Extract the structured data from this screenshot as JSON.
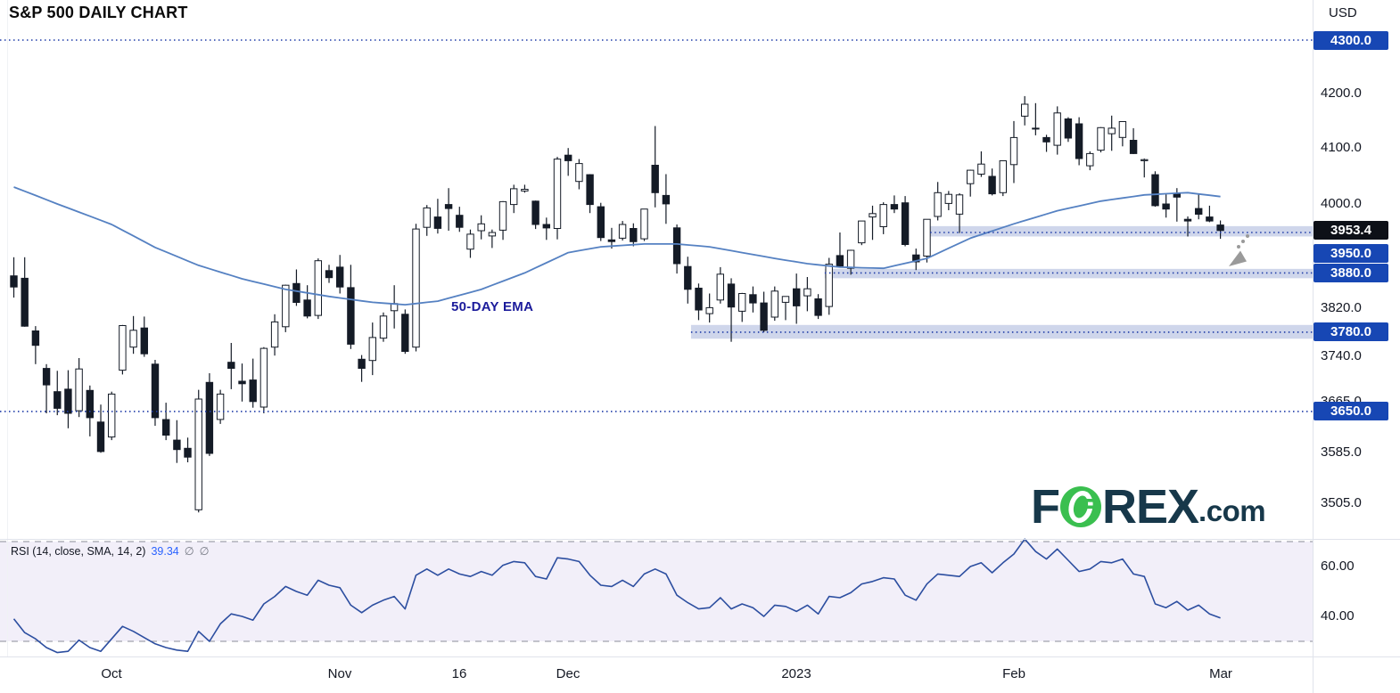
{
  "header": {
    "title": "S&P 500 DAILY CHART",
    "currency_label": "USD"
  },
  "annotations": {
    "ema_label": "50-DAY EMA",
    "arrow_direction": "down-left"
  },
  "logo": {
    "f": "F",
    "rex": "REX",
    "com": ".com"
  },
  "colors": {
    "accent_blue_badge": "#1747b4",
    "last_price_badge": "#0d1017",
    "dotted_level_line": "#1e3ba8",
    "zone_fill": "rgba(55,85,170,0.24)",
    "candle_dark": "#141b26",
    "candle_up_fill": "#ffffff",
    "ema_line": "#5581c2",
    "rsi_line": "#2c4ea0",
    "rsi_band_fill": "#f2eff9",
    "rsi_dashed": "#8b8e99",
    "arrow_gray": "#9a9a9a",
    "logo_green": "#3abf4f",
    "logo_dark": "#17384a",
    "axis_text": "#131722"
  },
  "price_axis": {
    "static_labels": [
      {
        "label": "4200.0",
        "price": 4200
      },
      {
        "label": "4100.0",
        "price": 4100
      },
      {
        "label": "4000.0",
        "price": 4000
      },
      {
        "label": "3820.0",
        "price": 3820
      },
      {
        "label": "3740.0",
        "price": 3740
      },
      {
        "label": "3665.0",
        "price": 3665
      },
      {
        "label": "3585.0",
        "price": 3585
      },
      {
        "label": "3505.0",
        "price": 3505
      }
    ],
    "badges": [
      {
        "label": "4300.0",
        "price": 4300,
        "style": "level",
        "line": "full"
      },
      {
        "label": "3953.4",
        "price": 3953.4,
        "style": "last"
      },
      {
        "label": "3950.0",
        "price": 3950,
        "style": "level",
        "dy": 24
      },
      {
        "label": "3880.0",
        "price": 3880,
        "style": "level"
      },
      {
        "label": "3780.0",
        "price": 3780,
        "style": "level"
      },
      {
        "label": "3650.0",
        "price": 3650,
        "style": "level",
        "line": "full"
      }
    ]
  },
  "zones": [
    {
      "price_top": 3961,
      "price_bottom": 3943,
      "line_price": 3950,
      "start_index": 84.3
    },
    {
      "price_top": 3887,
      "price_bottom": 3871,
      "line_price": 3880,
      "start_index": 74.6
    },
    {
      "price_top": 3792,
      "price_bottom": 3769,
      "line_price": 3780,
      "start_index": 62.3
    }
  ],
  "time_axis": {
    "labels": [
      {
        "index": 9,
        "label": "Oct"
      },
      {
        "index": 30,
        "label": "Nov"
      },
      {
        "index": 41,
        "label": "16"
      },
      {
        "index": 51,
        "label": "Dec"
      },
      {
        "index": 72,
        "label": "2023"
      },
      {
        "index": 92,
        "label": "Feb"
      },
      {
        "index": 111,
        "label": "Mar"
      }
    ]
  },
  "rsi_panel": {
    "label": "RSI (14, close, SMA, 14, 2)",
    "value": "39.34",
    "icon": "∅",
    "upper_band": 70,
    "lower_band": 30,
    "ticks": [
      {
        "value": 60,
        "label": "60.00"
      },
      {
        "value": 40,
        "label": "40.00"
      }
    ]
  },
  "chart_data": {
    "type": "candlestick",
    "title": "S&P 500 DAILY CHART",
    "currency": "USD",
    "price_scale": "log",
    "ylim": [
      3505,
      4300
    ],
    "last_price": 3953.4,
    "candles": [
      [
        3875,
        3907,
        3838,
        3856
      ],
      [
        3871,
        3907,
        3789,
        3790
      ],
      [
        3782,
        3790,
        3727,
        3758
      ],
      [
        3720,
        3727,
        3647,
        3693
      ],
      [
        3682,
        3716,
        3644,
        3655
      ],
      [
        3686,
        3717,
        3623,
        3647
      ],
      [
        3651,
        3737,
        3641,
        3719
      ],
      [
        3684,
        3692,
        3610,
        3640
      ],
      [
        3633,
        3661,
        3584,
        3586
      ],
      [
        3609,
        3682,
        3604,
        3678
      ],
      [
        3717,
        3792,
        3710,
        3791
      ],
      [
        3755,
        3807,
        3744,
        3783
      ],
      [
        3787,
        3806,
        3739,
        3744
      ],
      [
        3727,
        3734,
        3627,
        3640
      ],
      [
        3637,
        3664,
        3604,
        3612
      ],
      [
        3604,
        3636,
        3568,
        3589
      ],
      [
        3591,
        3608,
        3569,
        3577
      ],
      [
        3495,
        3685,
        3491,
        3670
      ],
      [
        3697,
        3712,
        3579,
        3583
      ],
      [
        3637,
        3685,
        3630,
        3678
      ],
      [
        3730,
        3762,
        3686,
        3720
      ],
      [
        3699,
        3728,
        3666,
        3695
      ],
      [
        3701,
        3736,
        3656,
        3666
      ],
      [
        3657,
        3755,
        3647,
        3753
      ],
      [
        3755,
        3810,
        3741,
        3797
      ],
      [
        3789,
        3860,
        3780,
        3859
      ],
      [
        3862,
        3886,
        3824,
        3830
      ],
      [
        3834,
        3859,
        3803,
        3807
      ],
      [
        3808,
        3905,
        3802,
        3901
      ],
      [
        3884,
        3894,
        3863,
        3872
      ],
      [
        3890,
        3911,
        3845,
        3856
      ],
      [
        3855,
        3894,
        3752,
        3760
      ],
      [
        3735,
        3742,
        3698,
        3720
      ],
      [
        3733,
        3796,
        3709,
        3771
      ],
      [
        3770,
        3813,
        3764,
        3807
      ],
      [
        3816,
        3859,
        3786,
        3828
      ],
      [
        3810,
        3818,
        3744,
        3748
      ],
      [
        3755,
        3965,
        3748,
        3956
      ],
      [
        3959,
        3998,
        3944,
        3993
      ],
      [
        3977,
        4009,
        3948,
        3957
      ],
      [
        3999,
        4028,
        3953,
        3992
      ],
      [
        3980,
        3995,
        3951,
        3959
      ],
      [
        3921,
        3955,
        3906,
        3947
      ],
      [
        3953,
        3980,
        3938,
        3965
      ],
      [
        3944,
        3955,
        3923,
        3950
      ],
      [
        3954,
        4005,
        3937,
        4004
      ],
      [
        3999,
        4034,
        3984,
        4027
      ],
      [
        4023,
        4034,
        4020,
        4026
      ],
      [
        4005,
        4006,
        3956,
        3964
      ],
      [
        3964,
        3976,
        3937,
        3958
      ],
      [
        3957,
        4084,
        3938,
        4080
      ],
      [
        4087,
        4100,
        4050,
        4077
      ],
      [
        4040,
        4080,
        4026,
        4072
      ],
      [
        4052,
        4053,
        3984,
        3999
      ],
      [
        3995,
        4002,
        3935,
        3941
      ],
      [
        3937,
        3958,
        3922,
        3934
      ],
      [
        3940,
        3970,
        3936,
        3964
      ],
      [
        3957,
        3966,
        3926,
        3934
      ],
      [
        3939,
        3991,
        3935,
        3991
      ],
      [
        4069,
        4140,
        3994,
        4020
      ],
      [
        4015,
        4053,
        3965,
        4000
      ],
      [
        3958,
        3964,
        3879,
        3896
      ],
      [
        3891,
        3908,
        3828,
        3852
      ],
      [
        3854,
        3862,
        3800,
        3817
      ],
      [
        3811,
        3845,
        3796,
        3821
      ],
      [
        3834,
        3890,
        3828,
        3878
      ],
      [
        3861,
        3871,
        3764,
        3822
      ],
      [
        3815,
        3846,
        3797,
        3845
      ],
      [
        3843,
        3857,
        3813,
        3829
      ],
      [
        3829,
        3848,
        3780,
        3783
      ],
      [
        3805,
        3857,
        3799,
        3849
      ],
      [
        3830,
        3840,
        3800,
        3840
      ],
      [
        3853,
        3879,
        3794,
        3824
      ],
      [
        3841,
        3873,
        3815,
        3853
      ],
      [
        3836,
        3844,
        3802,
        3808
      ],
      [
        3823,
        3906,
        3809,
        3895
      ],
      [
        3910,
        3950,
        3890,
        3892
      ],
      [
        3888,
        3920,
        3877,
        3919
      ],
      [
        3932,
        3970,
        3928,
        3970
      ],
      [
        3977,
        3997,
        3937,
        3983
      ],
      [
        3960,
        4003,
        3947,
        3999
      ],
      [
        3999,
        4015,
        3984,
        3991
      ],
      [
        4002,
        4014,
        3926,
        3929
      ],
      [
        3911,
        3922,
        3885,
        3899
      ],
      [
        3909,
        3972,
        3898,
        3973
      ],
      [
        3978,
        4039,
        3971,
        4020
      ],
      [
        4001,
        4023,
        3989,
        4017
      ],
      [
        3982,
        4019,
        3949,
        4016
      ],
      [
        4036,
        4061,
        4013,
        4060
      ],
      [
        4053,
        4094,
        4048,
        4071
      ],
      [
        4049,
        4063,
        4015,
        4018
      ],
      [
        4020,
        4077,
        4014,
        4077
      ],
      [
        4070,
        4149,
        4037,
        4119
      ],
      [
        4158,
        4195,
        4141,
        4180
      ],
      [
        4136,
        4182,
        4123,
        4136
      ],
      [
        4119,
        4124,
        4093,
        4111
      ],
      [
        4105,
        4176,
        4088,
        4164
      ],
      [
        4153,
        4156,
        4111,
        4118
      ],
      [
        4144,
        4156,
        4069,
        4081
      ],
      [
        4068,
        4094,
        4060,
        4090
      ],
      [
        4096,
        4138,
        4092,
        4137
      ],
      [
        4126,
        4159,
        4095,
        4136
      ],
      [
        4119,
        4148,
        4103,
        4148
      ],
      [
        4114,
        4136,
        4089,
        4090
      ],
      [
        4077,
        4081,
        4047,
        4079
      ],
      [
        4052,
        4058,
        3995,
        3997
      ],
      [
        4000,
        4017,
        3976,
        3991
      ],
      [
        4018,
        4028,
        3969,
        4012
      ],
      [
        3973,
        3978,
        3943,
        3970
      ],
      [
        3992,
        4018,
        3973,
        3982
      ],
      [
        3977,
        3997,
        3968,
        3970
      ],
      [
        3963,
        3971,
        3939,
        3953.4
      ]
    ],
    "overlays": [
      {
        "name": "50-day EMA",
        "type": "line",
        "anchors": [
          [
            0,
            4030
          ],
          [
            4,
            4000
          ],
          [
            9,
            3964
          ],
          [
            13,
            3924
          ],
          [
            17,
            3893
          ],
          [
            21,
            3870
          ],
          [
            25,
            3852
          ],
          [
            29,
            3840
          ],
          [
            33,
            3830
          ],
          [
            36,
            3826
          ],
          [
            39,
            3832
          ],
          [
            43,
            3852
          ],
          [
            47,
            3880
          ],
          [
            51,
            3915
          ],
          [
            54,
            3925
          ],
          [
            58,
            3930
          ],
          [
            61,
            3930
          ],
          [
            64,
            3925
          ],
          [
            67,
            3915
          ],
          [
            70,
            3905
          ],
          [
            73,
            3896
          ],
          [
            76,
            3890
          ],
          [
            80,
            3888
          ],
          [
            84,
            3905
          ],
          [
            88,
            3940
          ],
          [
            92,
            3965
          ],
          [
            96,
            3988
          ],
          [
            100,
            4005
          ],
          [
            104,
            4016
          ],
          [
            108,
            4020
          ],
          [
            111,
            4013
          ]
        ]
      }
    ],
    "rsi": {
      "name": "RSI (14, close, SMA, 14, 2)",
      "last": 39.34,
      "upper_band": 70,
      "lower_band": 30,
      "values": [
        39.0,
        33.5,
        31.0,
        27.5,
        25.5,
        26.0,
        30.5,
        27.5,
        26.0,
        31.0,
        36.0,
        34.0,
        31.5,
        29.0,
        27.5,
        26.5,
        26.0,
        34.0,
        30.0,
        37.0,
        41.0,
        40.0,
        38.5,
        45.0,
        48.0,
        52.0,
        50.0,
        48.5,
        54.5,
        52.5,
        51.5,
        44.5,
        41.5,
        44.5,
        46.5,
        48.0,
        43.0,
        56.5,
        59.0,
        56.5,
        59.0,
        57.0,
        56.0,
        58.0,
        56.5,
        60.5,
        62.0,
        61.5,
        56.0,
        55.0,
        63.5,
        63.0,
        62.0,
        56.5,
        52.5,
        52.0,
        54.5,
        52.0,
        57.0,
        59.0,
        57.0,
        48.5,
        45.5,
        43.0,
        43.5,
        47.5,
        43.0,
        45.0,
        43.5,
        40.0,
        44.5,
        44.0,
        42.0,
        44.5,
        41.0,
        48.0,
        47.5,
        49.5,
        53.0,
        54.0,
        55.5,
        55.0,
        48.5,
        46.5,
        53.0,
        57.0,
        56.5,
        56.0,
        60.0,
        61.5,
        57.5,
        61.5,
        65.0,
        71.0,
        66.0,
        63.0,
        67.0,
        62.5,
        58.0,
        59.0,
        62.0,
        61.5,
        63.0,
        57.0,
        56.0,
        45.0,
        43.5,
        46.0,
        42.5,
        44.5,
        41.0,
        39.34
      ]
    }
  }
}
